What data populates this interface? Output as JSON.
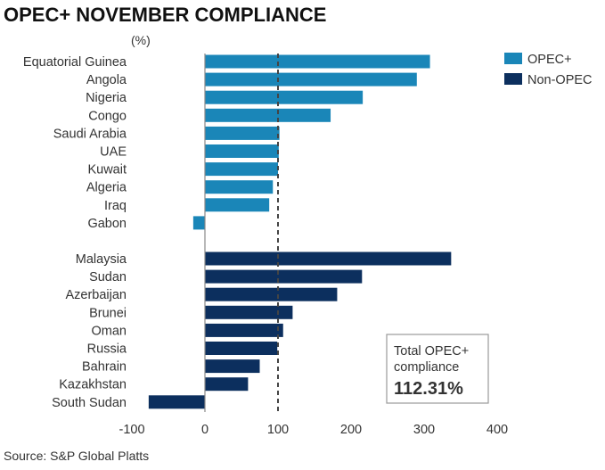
{
  "chart_data": {
    "type": "bar",
    "orientation": "horizontal",
    "title": "OPEC+ NOVEMBER COMPLIANCE",
    "unit_label": "(%)",
    "xlim": [
      -100,
      400
    ],
    "xticks": [
      -100,
      0,
      100,
      200,
      300,
      400
    ],
    "reference_line": 100,
    "grid": false,
    "legend_position": "top-right",
    "colors": {
      "OPEC+": "#1a86b8",
      "Non-OPEC": "#0c2f5e"
    },
    "series": [
      {
        "name": "OPEC+",
        "categories": [
          "Equatorial Guinea",
          "Angola",
          "Nigeria",
          "Congo",
          "Saudi Arabia",
          "UAE",
          "Kuwait",
          "Algeria",
          "Iraq",
          "Gabon"
        ],
        "values": [
          308,
          290,
          216,
          172,
          102,
          101,
          100,
          93,
          88,
          -16
        ]
      },
      {
        "name": "Non-OPEC",
        "categories": [
          "Malaysia",
          "Sudan",
          "Azerbaijan",
          "Brunei",
          "Oman",
          "Russia",
          "Bahrain",
          "Kazakhstan",
          "South Sudan"
        ],
        "values": [
          337,
          215,
          181,
          120,
          107,
          99,
          75,
          59,
          -77
        ]
      }
    ],
    "annotation": {
      "label": "Total OPEC+ compliance",
      "value": "112.31%"
    },
    "source": "Source: S&P Global Platts"
  }
}
